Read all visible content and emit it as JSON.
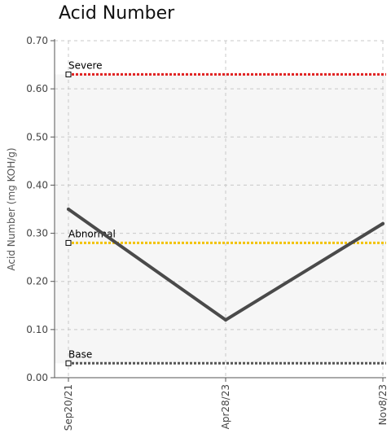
{
  "chart_data": {
    "type": "line",
    "title": "Acid Number",
    "ylabel": "Acid Number (mg KOH/g)",
    "xlabel": "",
    "ylim": [
      0,
      0.7
    ],
    "grid": true,
    "y_ticks": [
      "0.00",
      "0.10",
      "0.20",
      "0.30",
      "0.40",
      "0.50",
      "0.60",
      "0.70"
    ],
    "categories": [
      "Sep20/21",
      "Apr28/23",
      "Nov8/23"
    ],
    "series": [
      {
        "values": [
          0.35,
          0.12,
          0.32
        ],
        "color": "#4a4a4a"
      }
    ],
    "reference_lines": [
      {
        "name": "Severe",
        "value": 0.63,
        "color": "#e02020"
      },
      {
        "name": "Abnormal",
        "value": 0.28,
        "color": "#f2c200"
      },
      {
        "name": "Base",
        "value": 0.03,
        "color": "#555555"
      }
    ],
    "band_color": "#f6f6f6"
  }
}
